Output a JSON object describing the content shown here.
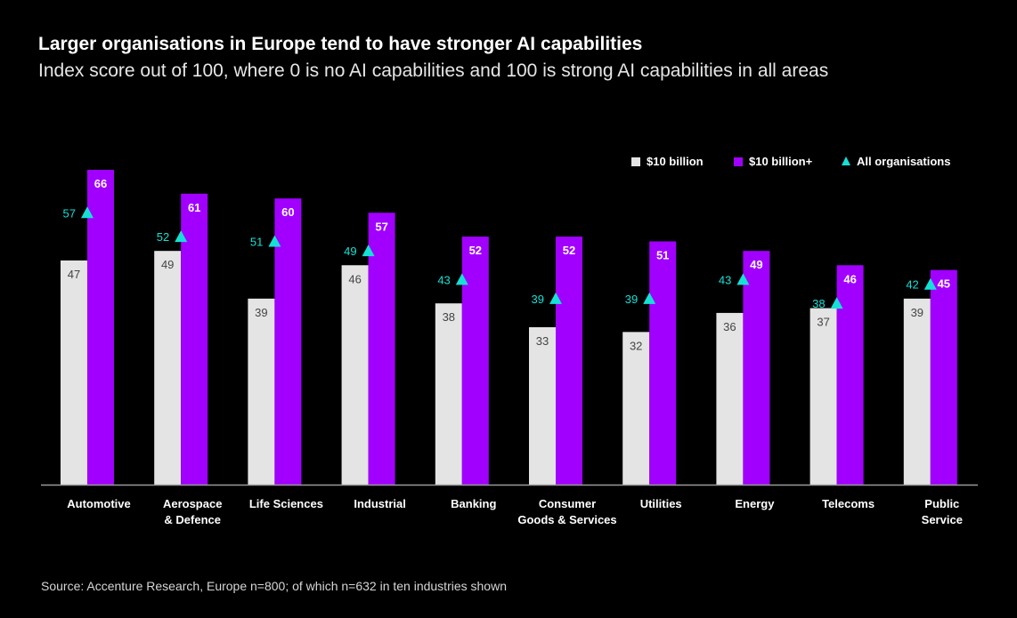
{
  "title": "Larger organisations in Europe tend to have stronger AI capabilities",
  "subtitle": "Index score out of 100, where 0 is no AI capabilities and 100 is strong AI capabilities in all areas",
  "source": "Source: Accenture Research, Europe n=800; of which n=632 in ten industries shown",
  "colors": {
    "small": "#e4e4e4",
    "large": "#a100ff",
    "all": "#16e0d6",
    "small_label": "#444444",
    "background": "#000000"
  },
  "chart_data": {
    "type": "bar",
    "categories": [
      [
        "Automotive"
      ],
      [
        "Aerospace",
        "& Defence"
      ],
      [
        "Life Sciences"
      ],
      [
        "Industrial"
      ],
      [
        "Banking"
      ],
      [
        "Consumer",
        "Goods & Services"
      ],
      [
        "Utilities"
      ],
      [
        "Energy"
      ],
      [
        "Telecoms"
      ],
      [
        "Public",
        "Service"
      ]
    ],
    "series": [
      {
        "name": "$10 billion",
        "kind": "bar",
        "values": [
          47,
          49,
          39,
          46,
          38,
          33,
          32,
          36,
          37,
          39
        ]
      },
      {
        "name": "$10 billion+",
        "kind": "bar",
        "values": [
          66,
          61,
          60,
          57,
          52,
          52,
          51,
          49,
          46,
          45
        ]
      },
      {
        "name": "All organisations",
        "kind": "marker",
        "values": [
          57,
          52,
          51,
          49,
          43,
          39,
          39,
          43,
          38,
          42
        ]
      }
    ],
    "ylim": [
      0,
      66
    ],
    "legend": "top-right",
    "grid": false
  }
}
